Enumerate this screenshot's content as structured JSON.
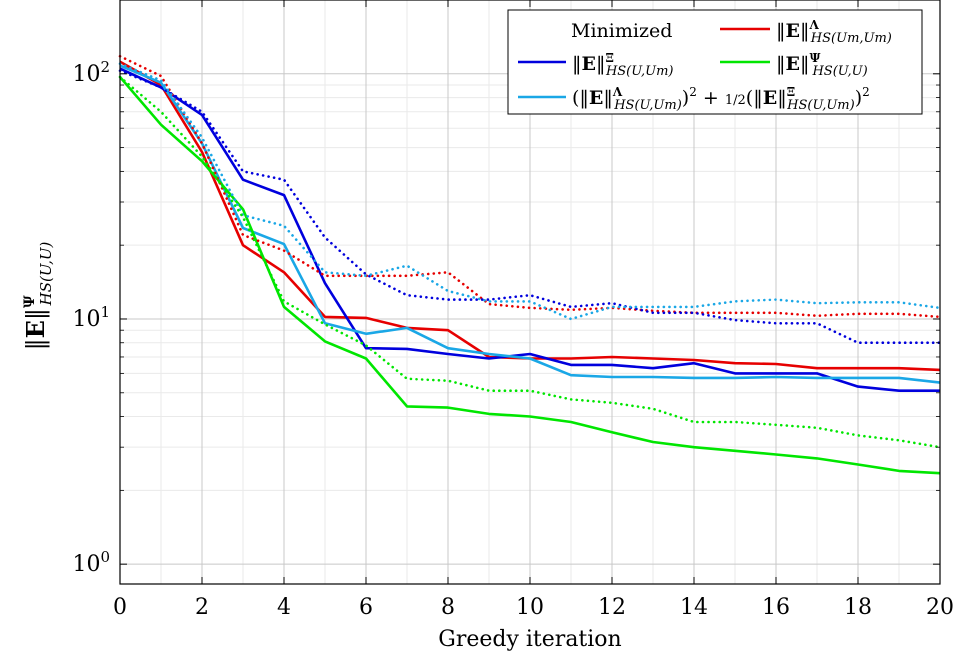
{
  "chart_data": {
    "type": "line",
    "xlabel": "Greedy iteration",
    "ylabel": "‖E‖^Ψ_{HS(U,U)}",
    "xlim": [
      0,
      20
    ],
    "ylim": [
      0.83,
      200
    ],
    "yscale": "log",
    "grid": true,
    "legend_placement": "top-right",
    "x_ticks": [
      "0",
      "2",
      "4",
      "6",
      "8",
      "10",
      "12",
      "14",
      "16",
      "18",
      "20"
    ],
    "y_ticks": [
      {
        "value": 1,
        "base": "10",
        "exp": "0"
      },
      {
        "value": 10,
        "base": "10",
        "exp": "1"
      },
      {
        "value": 100,
        "base": "10",
        "exp": "2"
      }
    ],
    "legend": {
      "header": "Minimized",
      "entries": [
        {
          "key": "blue",
          "color": "#0000dd",
          "label": "‖E‖^Ξ_{HS(U,Um)}"
        },
        {
          "key": "red",
          "color": "#e60000",
          "label": "‖E‖^Λ_{HS(Um,Um)}"
        },
        {
          "key": "lightblue",
          "color": "#1aa7e6",
          "label": "(‖E‖^Λ_{HS(U,Um)})^2 + 1/2(‖E‖^Ξ_{HS(U,Um)})^2"
        },
        {
          "key": "green",
          "color": "#00e600",
          "label": "‖E‖^Ψ_{HS(U,U)}"
        }
      ]
    },
    "x": [
      0,
      1,
      2,
      3,
      4,
      5,
      6,
      7,
      8,
      9,
      10,
      11,
      12,
      13,
      14,
      15,
      16,
      17,
      18,
      19,
      20
    ],
    "series": [
      {
        "key": "red",
        "style": "solid",
        "color": "#e60000",
        "values": [
          112,
          90,
          48,
          20,
          15.5,
          10.2,
          10.1,
          9.2,
          9.0,
          7.0,
          6.9,
          6.9,
          7.0,
          6.9,
          6.8,
          6.6,
          6.55,
          6.3,
          6.3,
          6.3,
          6.2
        ]
      },
      {
        "key": "blue",
        "style": "solid",
        "color": "#0000dd",
        "values": [
          105,
          88,
          68,
          37,
          32,
          14,
          7.6,
          7.55,
          7.2,
          6.9,
          7.2,
          6.5,
          6.5,
          6.3,
          6.6,
          6.0,
          6.0,
          6.0,
          5.3,
          5.1,
          5.1
        ]
      },
      {
        "key": "lightblue",
        "style": "solid",
        "color": "#1aa7e6",
        "values": [
          108,
          92,
          52,
          23.5,
          20.2,
          9.6,
          8.7,
          9.2,
          7.6,
          7.2,
          6.9,
          5.9,
          5.8,
          5.8,
          5.75,
          5.75,
          5.8,
          5.75,
          5.75,
          5.75,
          5.5
        ]
      },
      {
        "key": "green",
        "style": "solid",
        "color": "#00e600",
        "values": [
          97,
          62,
          44,
          28,
          11.2,
          8.1,
          6.9,
          4.4,
          4.35,
          4.1,
          4.0,
          3.8,
          3.45,
          3.15,
          3.0,
          2.9,
          2.8,
          2.7,
          2.55,
          2.4,
          2.35
        ]
      },
      {
        "key": "red",
        "style": "dotted",
        "color": "#e60000",
        "values": [
          118,
          98,
          52,
          22,
          19,
          15,
          15,
          15,
          15.5,
          11.5,
          11.1,
          10.9,
          11.1,
          10.8,
          10.6,
          10.6,
          10.6,
          10.3,
          10.5,
          10.5,
          10.2
        ]
      },
      {
        "key": "blue",
        "style": "dotted",
        "color": "#0000dd",
        "values": [
          103,
          88,
          70,
          40,
          37,
          21.5,
          15.2,
          12.5,
          12.0,
          12.0,
          12.5,
          11.2,
          11.6,
          10.6,
          10.6,
          9.9,
          9.6,
          9.6,
          8.0,
          8.0,
          8.0
        ]
      },
      {
        "key": "lightblue",
        "style": "dotted",
        "color": "#1aa7e6",
        "values": [
          110,
          94,
          55,
          26.5,
          24,
          15.5,
          15,
          16.5,
          13,
          11.8,
          11.8,
          10.0,
          11.2,
          11.2,
          11.2,
          11.8,
          12.0,
          11.6,
          11.7,
          11.7,
          11.1
        ]
      },
      {
        "key": "green",
        "style": "dotted",
        "color": "#00e600",
        "values": [
          97,
          70,
          46,
          26,
          11.8,
          9.5,
          7.8,
          5.7,
          5.6,
          5.1,
          5.1,
          4.7,
          4.55,
          4.3,
          3.8,
          3.8,
          3.7,
          3.6,
          3.35,
          3.2,
          3.0
        ]
      }
    ]
  }
}
